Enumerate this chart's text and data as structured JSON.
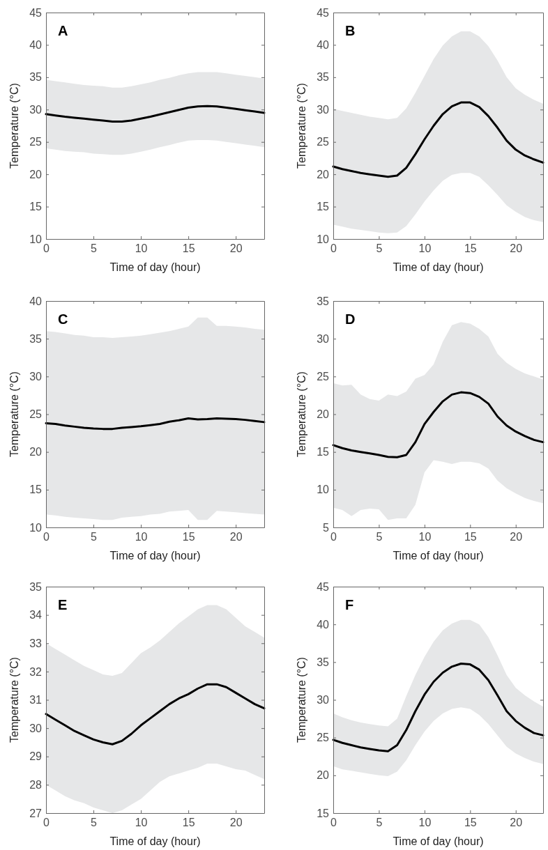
{
  "chart_data": [
    {
      "type": "line",
      "title": "A",
      "xlabel": "Time of day (hour)",
      "ylabel": "Temperature (°C)",
      "xlim": [
        0,
        23
      ],
      "xticks": [
        0,
        5,
        10,
        15,
        20
      ],
      "ylim": [
        10,
        45
      ],
      "yticks": [
        10,
        15,
        20,
        25,
        30,
        35,
        40,
        45
      ],
      "x": [
        0,
        1,
        2,
        3,
        4,
        5,
        6,
        7,
        8,
        9,
        10,
        11,
        12,
        13,
        14,
        15,
        16,
        17,
        18,
        19,
        20,
        21,
        22,
        23
      ],
      "series": [
        {
          "color": "#000000",
          "values": [
            29.3,
            29.1,
            28.9,
            28.75,
            28.6,
            28.45,
            28.3,
            28.15,
            28.15,
            28.3,
            28.6,
            28.9,
            29.25,
            29.6,
            29.95,
            30.3,
            30.5,
            30.55,
            30.5,
            30.3,
            30.1,
            29.9,
            29.7,
            29.5
          ],
          "upper": [
            34.6,
            34.4,
            34.2,
            34.0,
            33.8,
            33.7,
            33.6,
            33.4,
            33.4,
            33.6,
            33.9,
            34.2,
            34.6,
            34.9,
            35.3,
            35.6,
            35.8,
            35.8,
            35.8,
            35.6,
            35.4,
            35.2,
            35.0,
            34.8
          ],
          "lower": [
            24.0,
            23.8,
            23.6,
            23.5,
            23.4,
            23.2,
            23.1,
            23.0,
            23.0,
            23.2,
            23.5,
            23.8,
            24.2,
            24.5,
            24.9,
            25.2,
            25.3,
            25.3,
            25.2,
            25.0,
            24.8,
            24.6,
            24.4,
            24.2
          ]
        }
      ]
    },
    {
      "type": "line",
      "title": "B",
      "xlabel": "Time of day (hour)",
      "ylabel": "Temperature (°C)",
      "xlim": [
        0,
        23
      ],
      "xticks": [
        0,
        5,
        10,
        15,
        20
      ],
      "ylim": [
        10,
        45
      ],
      "yticks": [
        10,
        15,
        20,
        25,
        30,
        35,
        40,
        45
      ],
      "x": [
        0,
        1,
        2,
        3,
        4,
        5,
        6,
        7,
        8,
        9,
        10,
        11,
        12,
        13,
        14,
        15,
        16,
        17,
        18,
        19,
        20,
        21,
        22,
        23
      ],
      "series": [
        {
          "color": "#000000",
          "values": [
            21.2,
            20.8,
            20.5,
            20.2,
            20.0,
            19.8,
            19.6,
            19.8,
            21.0,
            23.1,
            25.4,
            27.5,
            29.3,
            30.5,
            31.1,
            31.1,
            30.4,
            29.0,
            27.2,
            25.2,
            23.8,
            22.9,
            22.3,
            21.8
          ],
          "upper": [
            30.1,
            29.8,
            29.5,
            29.2,
            28.9,
            28.7,
            28.5,
            28.7,
            30.2,
            32.6,
            35.2,
            37.8,
            39.9,
            41.3,
            42.1,
            42.1,
            41.3,
            39.8,
            37.6,
            35.0,
            33.3,
            32.3,
            31.5,
            30.9
          ],
          "lower": [
            12.2,
            11.9,
            11.6,
            11.4,
            11.2,
            11.0,
            10.9,
            11.0,
            12.0,
            13.8,
            15.8,
            17.5,
            19.0,
            19.9,
            20.2,
            20.2,
            19.6,
            18.3,
            16.8,
            15.2,
            14.2,
            13.4,
            12.9,
            12.6
          ]
        }
      ]
    },
    {
      "type": "line",
      "title": "C",
      "xlabel": "Time of day (hour)",
      "ylabel": "Temperature (°C)",
      "xlim": [
        0,
        23
      ],
      "xticks": [
        0,
        5,
        10,
        15,
        20
      ],
      "ylim": [
        10,
        40
      ],
      "yticks": [
        10,
        15,
        20,
        25,
        30,
        35,
        40
      ],
      "x": [
        0,
        1,
        2,
        3,
        4,
        5,
        6,
        7,
        8,
        9,
        10,
        11,
        12,
        13,
        14,
        15,
        16,
        17,
        18,
        19,
        20,
        21,
        22,
        23
      ],
      "series": [
        {
          "color": "#000000",
          "values": [
            23.8,
            23.7,
            23.5,
            23.35,
            23.2,
            23.1,
            23.05,
            23.05,
            23.2,
            23.3,
            23.4,
            23.55,
            23.7,
            24.0,
            24.2,
            24.45,
            24.3,
            24.35,
            24.45,
            24.4,
            24.35,
            24.25,
            24.1,
            23.95
          ],
          "upper": [
            36.0,
            35.9,
            35.7,
            35.5,
            35.4,
            35.2,
            35.2,
            35.1,
            35.2,
            35.3,
            35.4,
            35.6,
            35.8,
            36.0,
            36.3,
            36.6,
            37.8,
            37.8,
            36.7,
            36.7,
            36.6,
            36.5,
            36.3,
            36.2
          ],
          "lower": [
            11.7,
            11.6,
            11.4,
            11.3,
            11.2,
            11.1,
            11.0,
            11.0,
            11.3,
            11.4,
            11.5,
            11.7,
            11.8,
            12.1,
            12.2,
            12.3,
            11.0,
            11.0,
            12.2,
            12.1,
            12.0,
            11.9,
            11.8,
            11.7
          ]
        }
      ]
    },
    {
      "type": "line",
      "title": "D",
      "xlabel": "Time of day (hour)",
      "ylabel": "Temperature (°C)",
      "xlim": [
        0,
        23
      ],
      "xticks": [
        0,
        5,
        10,
        15,
        20
      ],
      "ylim": [
        5,
        35
      ],
      "yticks": [
        5,
        10,
        15,
        20,
        25,
        30,
        35
      ],
      "x": [
        0,
        1,
        2,
        3,
        4,
        5,
        6,
        7,
        8,
        9,
        10,
        11,
        12,
        13,
        14,
        15,
        16,
        17,
        18,
        19,
        20,
        21,
        22,
        23
      ],
      "series": [
        {
          "color": "#000000",
          "values": [
            15.9,
            15.5,
            15.2,
            15.0,
            14.8,
            14.6,
            14.35,
            14.3,
            14.6,
            16.3,
            18.7,
            20.3,
            21.7,
            22.6,
            22.9,
            22.8,
            22.3,
            21.4,
            19.7,
            18.5,
            17.7,
            17.1,
            16.6,
            16.3
          ],
          "upper": [
            24.1,
            23.8,
            23.9,
            22.6,
            22.0,
            21.8,
            22.6,
            22.4,
            23.0,
            24.7,
            25.2,
            26.6,
            29.6,
            31.8,
            32.2,
            32.0,
            31.3,
            30.3,
            28.0,
            26.8,
            26.0,
            25.4,
            25.0,
            24.6
          ],
          "lower": [
            7.6,
            7.3,
            6.5,
            7.3,
            7.5,
            7.4,
            6.0,
            6.2,
            6.2,
            8.0,
            12.3,
            13.9,
            13.7,
            13.4,
            13.7,
            13.7,
            13.5,
            12.8,
            11.2,
            10.2,
            9.5,
            8.9,
            8.5,
            8.2
          ]
        }
      ]
    },
    {
      "type": "line",
      "title": "E",
      "xlabel": "Time of day (hour)",
      "ylabel": "Temperature (°C)",
      "xlim": [
        0,
        23
      ],
      "xticks": [
        0,
        5,
        10,
        15,
        20
      ],
      "ylim": [
        27,
        35
      ],
      "yticks": [
        27,
        28,
        29,
        30,
        31,
        32,
        33,
        34,
        35
      ],
      "x": [
        0,
        1,
        2,
        3,
        4,
        5,
        6,
        7,
        8,
        9,
        10,
        11,
        12,
        13,
        14,
        15,
        16,
        17,
        18,
        19,
        20,
        21,
        22,
        23
      ],
      "series": [
        {
          "color": "#000000",
          "values": [
            30.5,
            30.3,
            30.1,
            29.9,
            29.75,
            29.6,
            29.5,
            29.43,
            29.55,
            29.8,
            30.1,
            30.35,
            30.6,
            30.85,
            31.05,
            31.2,
            31.4,
            31.55,
            31.55,
            31.45,
            31.25,
            31.05,
            30.85,
            30.7
          ],
          "upper": [
            33.0,
            32.8,
            32.6,
            32.4,
            32.2,
            32.05,
            31.9,
            31.85,
            31.95,
            32.3,
            32.65,
            32.85,
            33.1,
            33.4,
            33.7,
            33.95,
            34.2,
            34.35,
            34.35,
            34.2,
            33.9,
            33.6,
            33.4,
            33.2
          ],
          "lower": [
            28.0,
            27.8,
            27.6,
            27.45,
            27.35,
            27.2,
            27.1,
            27.0,
            27.1,
            27.3,
            27.5,
            27.8,
            28.1,
            28.3,
            28.4,
            28.5,
            28.6,
            28.75,
            28.75,
            28.65,
            28.55,
            28.5,
            28.35,
            28.2
          ]
        }
      ]
    },
    {
      "type": "line",
      "title": "F",
      "xlabel": "Time of day (hour)",
      "ylabel": "Temperature (°C)",
      "xlim": [
        0,
        23
      ],
      "xticks": [
        0,
        5,
        10,
        15,
        20
      ],
      "ylim": [
        15,
        45
      ],
      "yticks": [
        15,
        20,
        25,
        30,
        35,
        40,
        45
      ],
      "x": [
        0,
        1,
        2,
        3,
        4,
        5,
        6,
        7,
        8,
        9,
        10,
        11,
        12,
        13,
        14,
        15,
        16,
        17,
        18,
        19,
        20,
        21,
        22,
        23
      ],
      "series": [
        {
          "color": "#000000",
          "values": [
            24.7,
            24.3,
            24.0,
            23.7,
            23.5,
            23.3,
            23.2,
            24.0,
            26.0,
            28.5,
            30.7,
            32.4,
            33.6,
            34.4,
            34.8,
            34.7,
            34.0,
            32.6,
            30.6,
            28.5,
            27.2,
            26.3,
            25.6,
            25.3
          ],
          "upper": [
            28.2,
            27.7,
            27.3,
            27.0,
            26.8,
            26.6,
            26.5,
            27.5,
            30.5,
            33.3,
            35.7,
            37.7,
            39.2,
            40.1,
            40.6,
            40.6,
            40.0,
            38.3,
            35.9,
            33.3,
            31.6,
            30.6,
            29.8,
            29.1
          ],
          "lower": [
            21.2,
            20.8,
            20.6,
            20.4,
            20.2,
            20.0,
            19.9,
            20.5,
            22.0,
            24.0,
            25.8,
            27.2,
            28.2,
            28.8,
            29.0,
            28.8,
            28.0,
            26.8,
            25.3,
            23.8,
            22.9,
            22.3,
            21.8,
            21.5
          ]
        }
      ]
    }
  ]
}
